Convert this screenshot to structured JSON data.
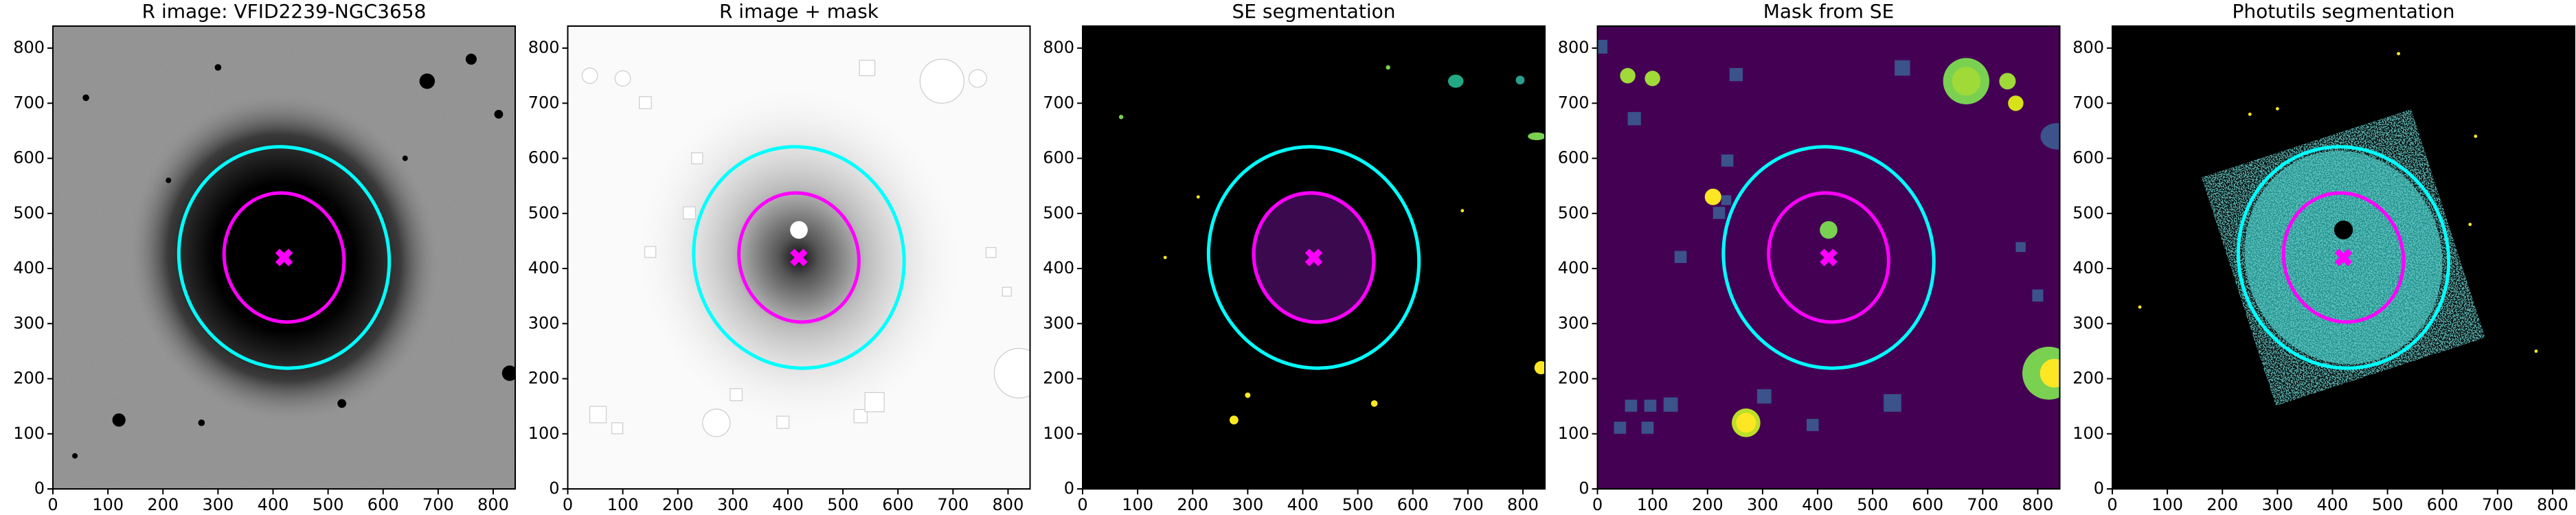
{
  "chart_data": [
    {
      "type": "image",
      "title": "R image: VFID2239-NGC3658",
      "xlim": [
        0,
        840
      ],
      "ylim": [
        0,
        840
      ],
      "xticks": [
        0,
        100,
        200,
        300,
        400,
        500,
        600,
        700,
        800
      ],
      "yticks": [
        0,
        100,
        200,
        300,
        400,
        500,
        600,
        700,
        800
      ],
      "background": "#8c8c8c"
    },
    {
      "type": "image",
      "title": "R image + mask",
      "xlim": [
        0,
        840
      ],
      "ylim": [
        0,
        840
      ],
      "xticks": [
        0,
        100,
        200,
        300,
        400,
        500,
        600,
        700,
        800
      ],
      "yticks": [
        0,
        100,
        200,
        300,
        400,
        500,
        600,
        700,
        800
      ],
      "background": "#fafafa"
    },
    {
      "type": "image",
      "title": "SE segmentation",
      "xlim": [
        0,
        840
      ],
      "ylim": [
        0,
        840
      ],
      "xticks": [
        0,
        100,
        200,
        300,
        400,
        500,
        600,
        700,
        800
      ],
      "yticks": [
        0,
        100,
        200,
        300,
        400,
        500,
        600,
        700,
        800
      ],
      "background": "#000000"
    },
    {
      "type": "image",
      "title": "Mask from SE",
      "xlim": [
        0,
        840
      ],
      "ylim": [
        0,
        840
      ],
      "xticks": [
        0,
        100,
        200,
        300,
        400,
        500,
        600,
        700,
        800
      ],
      "yticks": [
        0,
        100,
        200,
        300,
        400,
        500,
        600,
        700,
        800
      ],
      "background": "#440154"
    },
    {
      "type": "image",
      "title": "Photutils segmentation",
      "xlim": [
        0,
        840
      ],
      "ylim": [
        0,
        840
      ],
      "xticks": [
        0,
        100,
        200,
        300,
        400,
        500,
        600,
        700,
        800
      ],
      "yticks": [
        0,
        100,
        200,
        300,
        400,
        500,
        600,
        700,
        800
      ],
      "background": "#000000"
    }
  ]
}
